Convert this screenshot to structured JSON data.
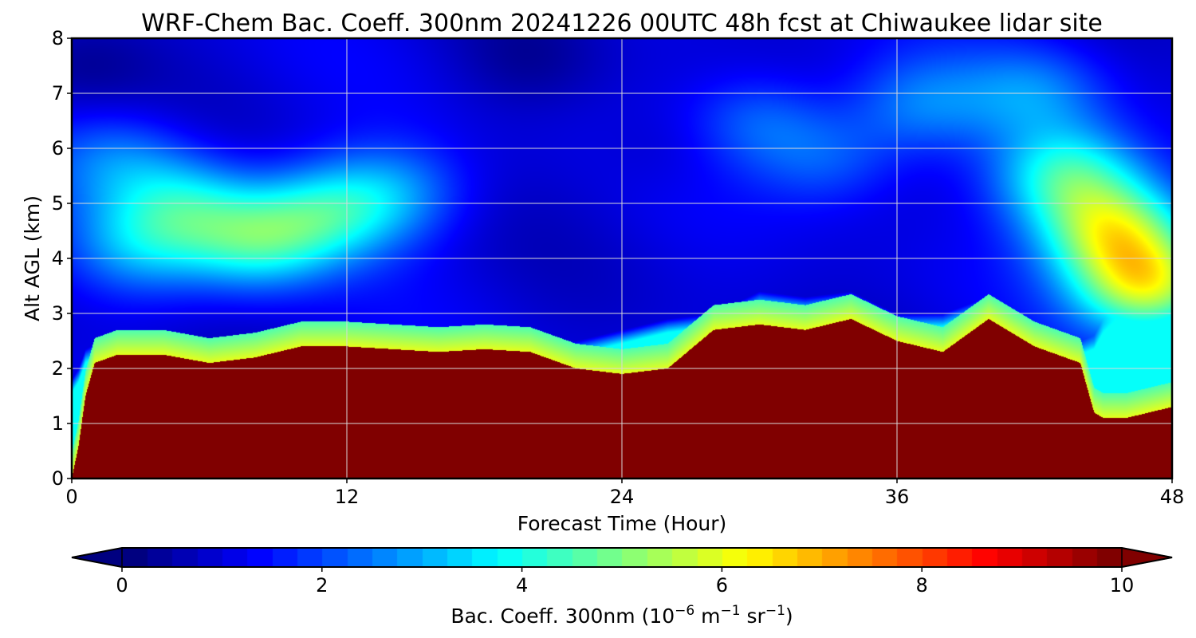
{
  "chart_data": {
    "type": "heatmap",
    "title": "WRF-Chem Bac. Coeff. 300nm  20241226 00UTC 48h fcst at Chiwaukee lidar site",
    "xlabel": "Forecast Time (Hour)",
    "ylabel": "Alt AGL (km)",
    "xlim": [
      0,
      48
    ],
    "ylim": [
      0,
      8
    ],
    "x_ticks": [
      0,
      12,
      24,
      36,
      48
    ],
    "y_ticks": [
      0,
      1,
      2,
      3,
      4,
      5,
      6,
      7,
      8
    ],
    "grid": true,
    "colormap": "jet",
    "colorbar": {
      "label": "Bac. Coeff. 300nm",
      "unit_prefix": "(10",
      "unit_exp1": "−6",
      "unit_mid": " m",
      "unit_exp2": "−1",
      "unit_mid2": " sr",
      "unit_exp3": "−1",
      "unit_suffix": ")",
      "range": [
        0,
        10
      ],
      "ticks": [
        0,
        2,
        4,
        6,
        8,
        10
      ],
      "extend": "both"
    },
    "profile_times": [
      0,
      0.3,
      0.6,
      1,
      2,
      4,
      6,
      8,
      10,
      12,
      14,
      16,
      18,
      20,
      22,
      24,
      26,
      28,
      30,
      32,
      34,
      36,
      38,
      40,
      42,
      44,
      44.6,
      45,
      46,
      47,
      48
    ],
    "high_layer_top_km": [
      0,
      0.6,
      1.5,
      2.1,
      2.25,
      2.25,
      2.1,
      2.2,
      2.4,
      2.4,
      2.35,
      2.3,
      2.35,
      2.3,
      2.0,
      1.9,
      2.0,
      2.7,
      2.8,
      2.7,
      2.9,
      2.5,
      2.3,
      2.9,
      2.4,
      2.1,
      1.2,
      1.1,
      1.1,
      1.2,
      1.3
    ],
    "low_layer_top_km": [
      1.8,
      2.0,
      2.35,
      2.45,
      2.45,
      2.45,
      2.35,
      2.35,
      2.5,
      2.55,
      2.55,
      2.5,
      2.5,
      2.5,
      2.5,
      2.7,
      2.9,
      3.0,
      3.4,
      3.3,
      3.4,
      3.0,
      3.0,
      3.3,
      2.8,
      2.5,
      2.6,
      2.9,
      3.3,
      3.5,
      3.6
    ],
    "peak_value": 10,
    "low_layer_value": 3.8,
    "aloft_features": [
      {
        "t": 8,
        "z": 4.3,
        "value": 3.6
      },
      {
        "t": 11,
        "z": 4.8,
        "value": 3.3
      },
      {
        "t": 5,
        "z": 5.0,
        "value": 3.0
      },
      {
        "t": 3,
        "z": 4.2,
        "value": 2.6
      },
      {
        "t": 14,
        "z": 5.2,
        "value": 2.5
      },
      {
        "t": 2,
        "z": 5.8,
        "value": 2.2
      },
      {
        "t": 30,
        "z": 6.5,
        "value": 2.2
      },
      {
        "t": 33,
        "z": 5.8,
        "value": 2.1
      },
      {
        "t": 37,
        "z": 6.8,
        "value": 2.3
      },
      {
        "t": 42,
        "z": 7.0,
        "value": 2.4
      },
      {
        "t": 45.5,
        "z": 4.5,
        "value": 5.2
      },
      {
        "t": 47,
        "z": 3.5,
        "value": 5.6
      },
      {
        "t": 43.5,
        "z": 5.5,
        "value": 4.0
      },
      {
        "t": 20,
        "z": 7.6,
        "value": 0.4
      },
      {
        "t": 26,
        "z": 6.0,
        "value": 0.5
      },
      {
        "t": 0.5,
        "z": 7.5,
        "value": 0.3
      }
    ],
    "background_value": 0.9
  }
}
